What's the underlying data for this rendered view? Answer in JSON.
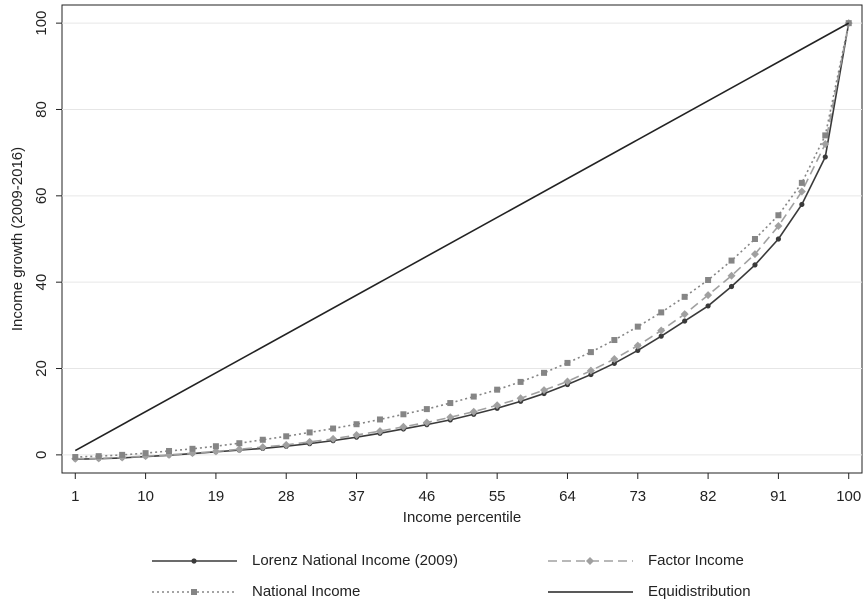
{
  "chart_data": {
    "type": "line",
    "x_label": "Income percentile",
    "y_label": "Income growth (2009-2016)",
    "xlim": [
      -0.7,
      101.7
    ],
    "ylim": [
      -4.2,
      104.2
    ],
    "xticks": [
      1,
      10,
      19,
      28,
      37,
      46,
      55,
      64,
      73,
      82,
      91,
      100
    ],
    "yticks": [
      0,
      20,
      40,
      60,
      80,
      100
    ],
    "grid": true,
    "series": [
      {
        "name": "Lorenz National Income (2009)",
        "color": "#3a3a3a",
        "dash": "solid",
        "marker": "circle",
        "x": [
          1,
          4,
          7,
          10,
          13,
          16,
          19,
          22,
          25,
          28,
          31,
          34,
          37,
          40,
          43,
          46,
          49,
          52,
          55,
          58,
          61,
          64,
          67,
          70,
          73,
          76,
          79,
          82,
          85,
          88,
          91,
          94,
          97,
          100
        ],
        "values": [
          -1,
          -0.9,
          -0.7,
          -0.4,
          -0.1,
          0.3,
          0.7,
          1.1,
          1.5,
          2,
          2.6,
          3.3,
          4.1,
          5,
          6,
          7,
          8.1,
          9.4,
          10.8,
          12.4,
          14.2,
          16.3,
          18.6,
          21.2,
          24.2,
          27.5,
          31,
          34.5,
          39,
          44,
          50,
          58,
          69,
          100
        ]
      },
      {
        "name": "Factor Income",
        "color": "#a0a0a0",
        "dash": "dashed",
        "marker": "diamond",
        "x": [
          1,
          4,
          7,
          10,
          13,
          16,
          19,
          22,
          25,
          28,
          31,
          34,
          37,
          40,
          43,
          46,
          49,
          52,
          55,
          58,
          61,
          64,
          67,
          70,
          73,
          76,
          79,
          82,
          85,
          88,
          91,
          94,
          97,
          100
        ],
        "values": [
          -0.9,
          -0.8,
          -0.6,
          -0.3,
          0,
          0.4,
          0.8,
          1.3,
          1.8,
          2.3,
          3,
          3.7,
          4.6,
          5.5,
          6.5,
          7.5,
          8.7,
          10,
          11.5,
          13.1,
          15,
          17,
          19.5,
          22.2,
          25.3,
          28.8,
          32.6,
          37,
          41.5,
          46.5,
          53,
          61,
          72,
          100
        ]
      },
      {
        "name": "National Income",
        "color": "#858585",
        "dash": "dotted",
        "marker": "square",
        "x": [
          1,
          4,
          7,
          10,
          13,
          16,
          19,
          22,
          25,
          28,
          31,
          34,
          37,
          40,
          43,
          46,
          49,
          52,
          55,
          58,
          61,
          64,
          67,
          70,
          73,
          76,
          79,
          82,
          85,
          88,
          91,
          94,
          97,
          100
        ],
        "values": [
          -0.5,
          -0.3,
          0,
          0.4,
          0.9,
          1.4,
          2,
          2.7,
          3.5,
          4.3,
          5.2,
          6.1,
          7.1,
          8.2,
          9.4,
          10.6,
          12,
          13.5,
          15.1,
          16.9,
          19,
          21.3,
          23.8,
          26.6,
          29.7,
          33,
          36.6,
          40.5,
          45,
          50,
          55.5,
          63,
          74,
          100
        ]
      },
      {
        "name": "Equidistribution",
        "color": "#222222",
        "dash": "solid",
        "marker": "none",
        "x": [
          1,
          100
        ],
        "values": [
          1,
          100
        ]
      }
    ]
  }
}
